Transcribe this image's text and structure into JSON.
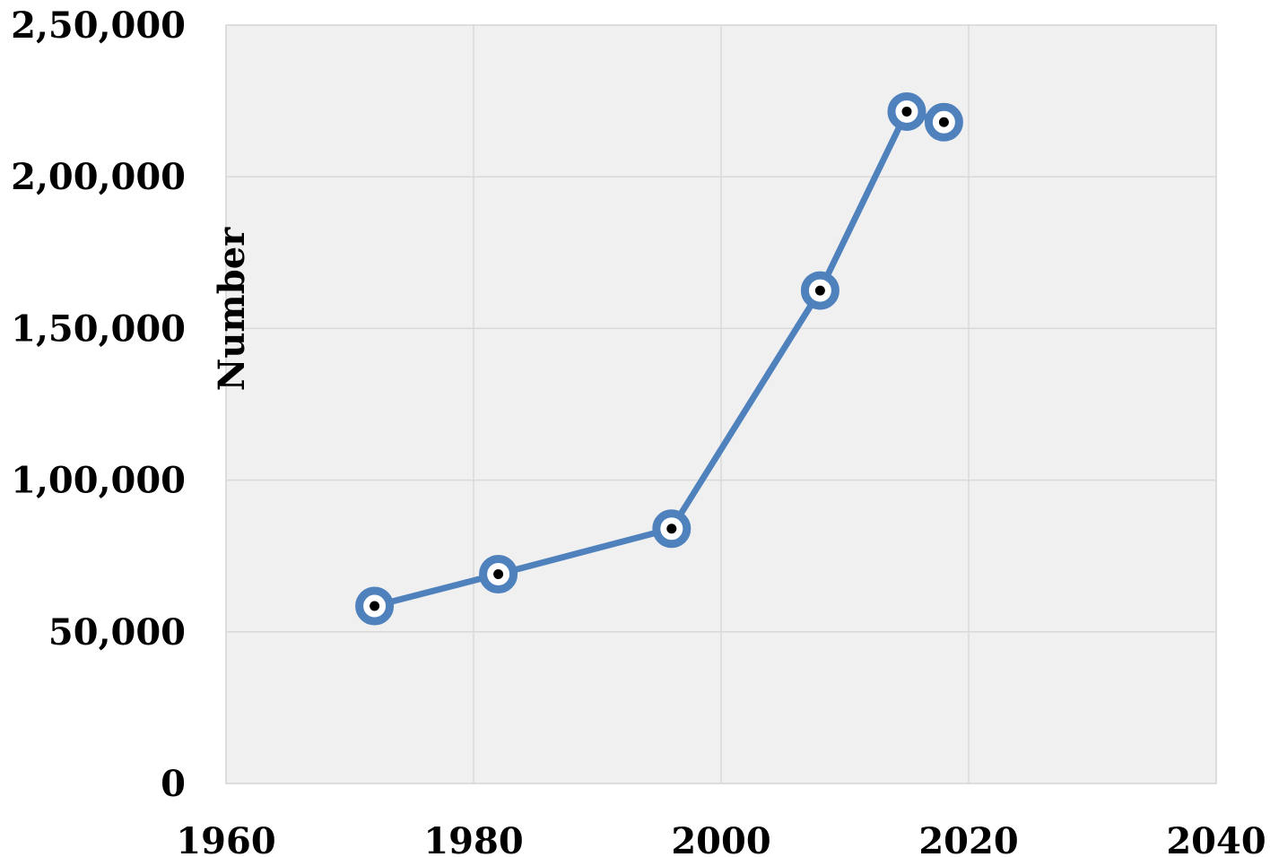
{
  "chart_data": {
    "type": "scatter",
    "title": "",
    "xlabel": "",
    "ylabel": "Number",
    "xlim": [
      1960,
      2040
    ],
    "ylim": [
      0,
      250000
    ],
    "x_ticks": [
      1960,
      1980,
      2000,
      2020,
      2040
    ],
    "x_tick_labels": [
      "1960",
      "1980",
      "2000",
      "2020",
      "2040"
    ],
    "y_ticks": [
      0,
      50000,
      100000,
      150000,
      200000,
      250000
    ],
    "y_tick_labels": [
      "0",
      "50,000",
      "1,00,000",
      "1,50,000",
      "2,00,000",
      "2,50,000"
    ],
    "grid": true,
    "legend": "none",
    "series": [
      {
        "x": [
          1972,
          1982,
          1996,
          2008,
          2015,
          2018
        ],
        "y": [
          58500,
          69000,
          84000,
          162500,
          221500,
          218000
        ],
        "line_color": "#4f81bd",
        "marker_fill": "#000000"
      }
    ]
  },
  "colors": {
    "plot_background": "#f0f0f0",
    "grid": "#d9d9d9",
    "series_line": "#4f81bd"
  }
}
